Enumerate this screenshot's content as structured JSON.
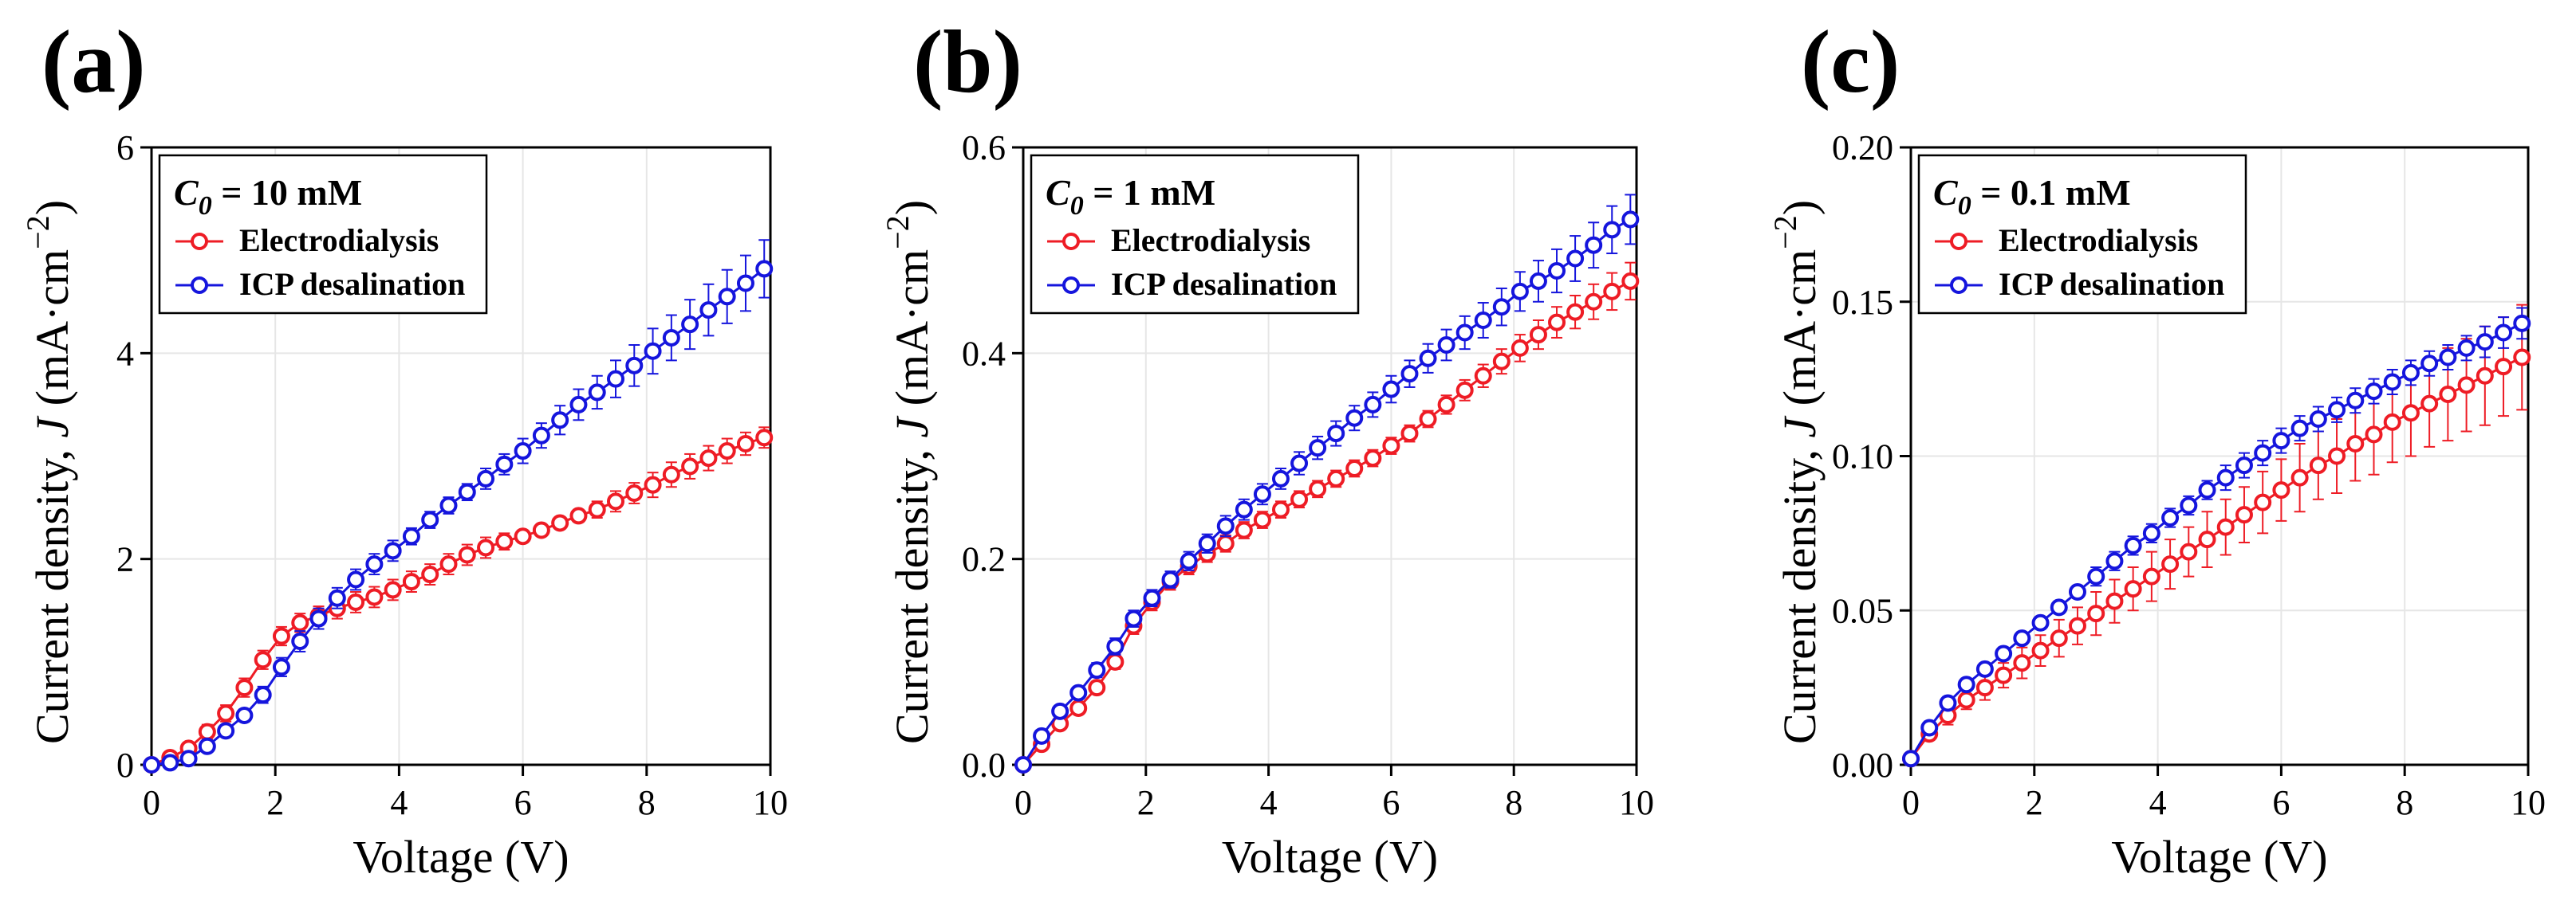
{
  "chart_data": [
    {
      "type": "line",
      "panel": "(a)",
      "xlabel": "Voltage (V)",
      "ylabel": {
        "prefix": "Current density, ",
        "var": "J",
        "unit": " (mA·cm",
        "sup": "−2",
        "close": ")"
      },
      "xlim": [
        0,
        10
      ],
      "ylim": [
        0,
        6
      ],
      "xticks": [
        0,
        2,
        4,
        6,
        8,
        10
      ],
      "yticks": [
        0,
        2,
        4,
        6
      ],
      "ytick_labels": [
        "0",
        "2",
        "4",
        "6"
      ],
      "legend": {
        "cond_sym": "C",
        "cond_sub": "0",
        "cond_val": " = 10 mM"
      },
      "series": [
        {
          "name": "Electrodialysis",
          "color": "#ee1c25",
          "x": [
            0,
            0.3,
            0.6,
            0.9,
            1.2,
            1.5,
            1.8,
            2.1,
            2.4,
            2.7,
            3.0,
            3.3,
            3.6,
            3.9,
            4.2,
            4.5,
            4.8,
            5.1,
            5.4,
            5.7,
            6.0,
            6.3,
            6.6,
            6.9,
            7.2,
            7.5,
            7.8,
            8.1,
            8.4,
            8.7,
            9.0,
            9.3,
            9.6,
            9.9
          ],
          "y": [
            0,
            0.07,
            0.16,
            0.32,
            0.5,
            0.75,
            1.02,
            1.25,
            1.38,
            1.45,
            1.52,
            1.58,
            1.63,
            1.7,
            1.78,
            1.85,
            1.95,
            2.04,
            2.11,
            2.17,
            2.22,
            2.28,
            2.35,
            2.42,
            2.48,
            2.56,
            2.64,
            2.72,
            2.82,
            2.9,
            2.98,
            3.05,
            3.12,
            3.18
          ],
          "err": [
            0.02,
            0.04,
            0.05,
            0.07,
            0.08,
            0.09,
            0.09,
            0.09,
            0.09,
            0.09,
            0.1,
            0.1,
            0.1,
            0.1,
            0.1,
            0.1,
            0.1,
            0.1,
            0.1,
            0.08,
            0.06,
            0.05,
            0.05,
            0.06,
            0.08,
            0.1,
            0.1,
            0.12,
            0.12,
            0.12,
            0.12,
            0.12,
            0.11,
            0.1
          ]
        },
        {
          "name": "ICP desalination",
          "color": "#1515dd",
          "x": [
            0,
            0.3,
            0.6,
            0.9,
            1.2,
            1.5,
            1.8,
            2.1,
            2.4,
            2.7,
            3.0,
            3.3,
            3.6,
            3.9,
            4.2,
            4.5,
            4.8,
            5.1,
            5.4,
            5.7,
            6.0,
            6.3,
            6.6,
            6.9,
            7.2,
            7.5,
            7.8,
            8.1,
            8.4,
            8.7,
            9.0,
            9.3,
            9.6,
            9.9
          ],
          "y": [
            0,
            0.02,
            0.06,
            0.18,
            0.33,
            0.48,
            0.68,
            0.95,
            1.2,
            1.42,
            1.62,
            1.8,
            1.95,
            2.08,
            2.22,
            2.38,
            2.52,
            2.65,
            2.78,
            2.92,
            3.05,
            3.2,
            3.35,
            3.5,
            3.62,
            3.75,
            3.88,
            4.02,
            4.15,
            4.28,
            4.42,
            4.55,
            4.68,
            4.82
          ],
          "err": [
            0.02,
            0.02,
            0.03,
            0.04,
            0.05,
            0.06,
            0.08,
            0.09,
            0.1,
            0.1,
            0.1,
            0.1,
            0.1,
            0.1,
            0.08,
            0.08,
            0.08,
            0.08,
            0.1,
            0.1,
            0.12,
            0.12,
            0.14,
            0.15,
            0.16,
            0.18,
            0.2,
            0.22,
            0.22,
            0.24,
            0.25,
            0.26,
            0.27,
            0.28
          ]
        }
      ]
    },
    {
      "type": "line",
      "panel": "(b)",
      "xlabel": "Voltage (V)",
      "ylabel": {
        "prefix": "Current density, ",
        "var": "J",
        "unit": " (mA·cm",
        "sup": "−2",
        "close": ")"
      },
      "xlim": [
        0,
        10
      ],
      "ylim": [
        0,
        0.6
      ],
      "xticks": [
        0,
        2,
        4,
        6,
        8,
        10
      ],
      "yticks": [
        0,
        0.2,
        0.4,
        0.6
      ],
      "ytick_labels": [
        "0.0",
        "0.2",
        "0.4",
        "0.6"
      ],
      "legend": {
        "cond_sym": "C",
        "cond_sub": "0",
        "cond_val": " = 1 mM"
      },
      "series": [
        {
          "name": "Electrodialysis",
          "color": "#ee1c25",
          "x": [
            0,
            0.3,
            0.6,
            0.9,
            1.2,
            1.5,
            1.8,
            2.1,
            2.4,
            2.7,
            3.0,
            3.3,
            3.6,
            3.9,
            4.2,
            4.5,
            4.8,
            5.1,
            5.4,
            5.7,
            6.0,
            6.3,
            6.6,
            6.9,
            7.2,
            7.5,
            7.8,
            8.1,
            8.4,
            8.7,
            9.0,
            9.3,
            9.6,
            9.9
          ],
          "y": [
            0,
            0.02,
            0.04,
            0.055,
            0.075,
            0.1,
            0.135,
            0.158,
            0.178,
            0.193,
            0.205,
            0.215,
            0.228,
            0.238,
            0.248,
            0.258,
            0.268,
            0.278,
            0.288,
            0.298,
            0.31,
            0.322,
            0.336,
            0.35,
            0.364,
            0.378,
            0.392,
            0.405,
            0.418,
            0.43,
            0.44,
            0.45,
            0.46,
            0.47
          ],
          "err": [
            0.002,
            0.004,
            0.005,
            0.005,
            0.006,
            0.007,
            0.008,
            0.008,
            0.008,
            0.008,
            0.008,
            0.008,
            0.008,
            0.008,
            0.008,
            0.008,
            0.008,
            0.008,
            0.008,
            0.008,
            0.008,
            0.008,
            0.008,
            0.009,
            0.01,
            0.011,
            0.012,
            0.013,
            0.014,
            0.015,
            0.016,
            0.017,
            0.018,
            0.018
          ]
        },
        {
          "name": "ICP desalination",
          "color": "#1515dd",
          "x": [
            0,
            0.3,
            0.6,
            0.9,
            1.2,
            1.5,
            1.8,
            2.1,
            2.4,
            2.7,
            3.0,
            3.3,
            3.6,
            3.9,
            4.2,
            4.5,
            4.8,
            5.1,
            5.4,
            5.7,
            6.0,
            6.3,
            6.6,
            6.9,
            7.2,
            7.5,
            7.8,
            8.1,
            8.4,
            8.7,
            9.0,
            9.3,
            9.6,
            9.9
          ],
          "y": [
            0,
            0.028,
            0.052,
            0.07,
            0.092,
            0.115,
            0.142,
            0.162,
            0.18,
            0.198,
            0.215,
            0.232,
            0.248,
            0.263,
            0.278,
            0.293,
            0.308,
            0.322,
            0.337,
            0.35,
            0.365,
            0.38,
            0.395,
            0.408,
            0.42,
            0.432,
            0.445,
            0.46,
            0.47,
            0.48,
            0.492,
            0.505,
            0.52,
            0.53
          ],
          "err": [
            0.002,
            0.004,
            0.005,
            0.006,
            0.007,
            0.008,
            0.008,
            0.008,
            0.008,
            0.009,
            0.009,
            0.01,
            0.01,
            0.01,
            0.01,
            0.011,
            0.011,
            0.012,
            0.012,
            0.012,
            0.013,
            0.013,
            0.014,
            0.015,
            0.016,
            0.017,
            0.018,
            0.019,
            0.02,
            0.021,
            0.022,
            0.022,
            0.023,
            0.024
          ]
        }
      ]
    },
    {
      "type": "line",
      "panel": "(c)",
      "xlabel": "Voltage (V)",
      "ylabel": {
        "prefix": "Current density, ",
        "var": "J",
        "unit": " (mA·cm",
        "sup": "−2",
        "close": ")"
      },
      "xlim": [
        0,
        10
      ],
      "ylim": [
        0,
        0.2
      ],
      "xticks": [
        0,
        2,
        4,
        6,
        8,
        10
      ],
      "yticks": [
        0,
        0.05,
        0.1,
        0.15,
        0.2
      ],
      "ytick_labels": [
        "0.00",
        "0.05",
        "0.10",
        "0.15",
        "0.20"
      ],
      "legend": {
        "cond_sym": "C",
        "cond_sub": "0",
        "cond_val": " = 0.1 mM"
      },
      "series": [
        {
          "name": "Electrodialysis",
          "color": "#ee1c25",
          "x": [
            0,
            0.3,
            0.6,
            0.9,
            1.2,
            1.5,
            1.8,
            2.1,
            2.4,
            2.7,
            3.0,
            3.3,
            3.6,
            3.9,
            4.2,
            4.5,
            4.8,
            5.1,
            5.4,
            5.7,
            6.0,
            6.3,
            6.6,
            6.9,
            7.2,
            7.5,
            7.8,
            8.1,
            8.4,
            8.7,
            9.0,
            9.3,
            9.6,
            9.9
          ],
          "y": [
            0.002,
            0.01,
            0.016,
            0.021,
            0.025,
            0.029,
            0.033,
            0.037,
            0.041,
            0.045,
            0.049,
            0.053,
            0.057,
            0.061,
            0.065,
            0.069,
            0.073,
            0.077,
            0.081,
            0.085,
            0.089,
            0.093,
            0.097,
            0.1,
            0.104,
            0.107,
            0.111,
            0.114,
            0.117,
            0.12,
            0.123,
            0.126,
            0.129,
            0.132
          ],
          "err": [
            0.001,
            0.002,
            0.003,
            0.003,
            0.004,
            0.004,
            0.005,
            0.005,
            0.006,
            0.006,
            0.007,
            0.007,
            0.007,
            0.008,
            0.008,
            0.008,
            0.009,
            0.009,
            0.009,
            0.01,
            0.01,
            0.011,
            0.011,
            0.012,
            0.012,
            0.013,
            0.013,
            0.014,
            0.014,
            0.015,
            0.015,
            0.016,
            0.016,
            0.017
          ]
        },
        {
          "name": "ICP desalination",
          "color": "#1515dd",
          "x": [
            0,
            0.3,
            0.6,
            0.9,
            1.2,
            1.5,
            1.8,
            2.1,
            2.4,
            2.7,
            3.0,
            3.3,
            3.6,
            3.9,
            4.2,
            4.5,
            4.8,
            5.1,
            5.4,
            5.7,
            6.0,
            6.3,
            6.6,
            6.9,
            7.2,
            7.5,
            7.8,
            8.1,
            8.4,
            8.7,
            9.0,
            9.3,
            9.6,
            9.9
          ],
          "y": [
            0.002,
            0.012,
            0.02,
            0.026,
            0.031,
            0.036,
            0.041,
            0.046,
            0.051,
            0.056,
            0.061,
            0.066,
            0.071,
            0.075,
            0.08,
            0.084,
            0.089,
            0.093,
            0.097,
            0.101,
            0.105,
            0.109,
            0.112,
            0.115,
            0.118,
            0.121,
            0.124,
            0.127,
            0.13,
            0.132,
            0.135,
            0.137,
            0.14,
            0.143
          ],
          "err": [
            0.001,
            0.002,
            0.002,
            0.002,
            0.002,
            0.002,
            0.002,
            0.002,
            0.002,
            0.002,
            0.003,
            0.003,
            0.003,
            0.003,
            0.003,
            0.003,
            0.003,
            0.004,
            0.004,
            0.004,
            0.004,
            0.004,
            0.004,
            0.004,
            0.004,
            0.004,
            0.004,
            0.004,
            0.004,
            0.004,
            0.004,
            0.005,
            0.005,
            0.005
          ]
        }
      ]
    }
  ]
}
